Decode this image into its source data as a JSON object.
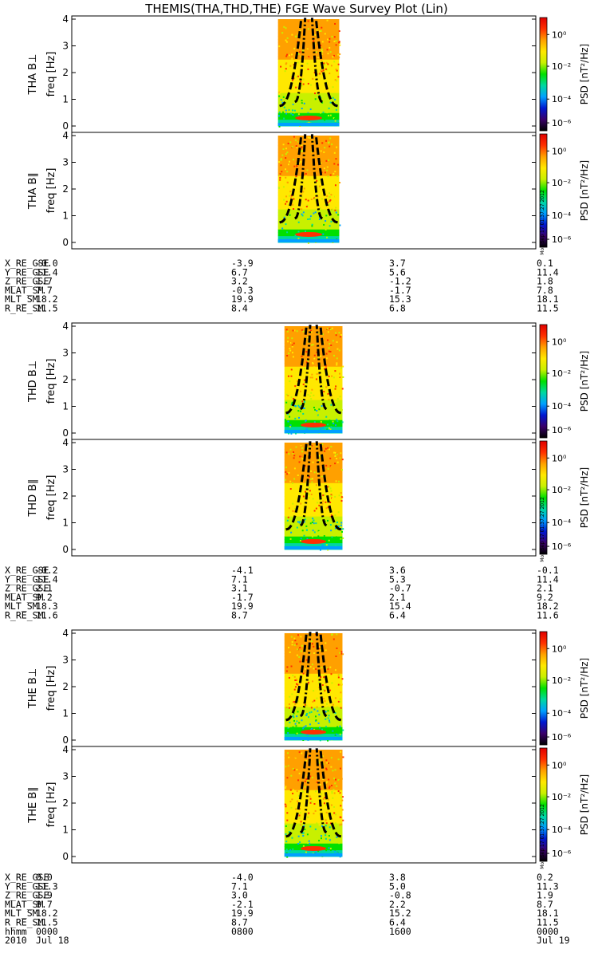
{
  "title": "THEMIS(THA,THD,THE) FGE Wave Survey Plot (Lin)",
  "freq_unit_label": "freq [Hz]",
  "y_ticks": [
    "0",
    "1",
    "2",
    "3",
    "4"
  ],
  "colorbar": {
    "title": "PSD [nT²/Hz]",
    "ticks": [
      "10⁰",
      "10⁻²",
      "10⁻⁴",
      "10⁻⁶"
    ],
    "timestamp": "Mon Sep 17 01:37:27 2012",
    "colors": [
      "#000000",
      "#3a006a",
      "#0018d0",
      "#00a0ff",
      "#00d8a0",
      "#00e000",
      "#c8f000",
      "#ffe800",
      "#ffa000",
      "#ff3000",
      "#e00000"
    ]
  },
  "probes": [
    {
      "panels": [
        "THA B⊥",
        "THA B∥"
      ],
      "ephemeris": [
        {
          "label": "X_RE_GSE",
          "values": [
            "-0.0",
            "-3.9",
            "3.7",
            "0.1"
          ]
        },
        {
          "label": "Y_RE_GSE",
          "values": [
            "11.4",
            "6.7",
            "5.6",
            "11.4"
          ]
        },
        {
          "label": "Z_RE_GSE",
          "values": [
            "1.7",
            "3.2",
            "-1.2",
            "1.8"
          ]
        },
        {
          "label": "MLAT_SM",
          "values": [
            "7.7",
            "-0.3",
            "-1.7",
            "7.8"
          ]
        },
        {
          "label": "MLT_SM",
          "values": [
            "18.2",
            "19.9",
            "15.3",
            "18.1"
          ]
        },
        {
          "label": "R_RE_SM",
          "values": [
            "11.5",
            "8.4",
            "6.8",
            "11.5"
          ]
        }
      ]
    },
    {
      "panels": [
        "THD B⊥",
        "THD B∥"
      ],
      "ephemeris": [
        {
          "label": "X_RE_GSE",
          "values": [
            "-0.2",
            "-4.1",
            "3.6",
            "-0.1"
          ]
        },
        {
          "label": "Y_RE_GSE",
          "values": [
            "11.4",
            "7.1",
            "5.3",
            "11.4"
          ]
        },
        {
          "label": "Z_RE_GSE",
          "values": [
            "2.1",
            "3.1",
            "-0.7",
            "2.1"
          ]
        },
        {
          "label": "MLAT_SM",
          "values": [
            "9.2",
            "-1.7",
            "2.1",
            "9.2"
          ]
        },
        {
          "label": "MLT_SM",
          "values": [
            "18.3",
            "19.9",
            "15.4",
            "18.2"
          ]
        },
        {
          "label": "R_RE_SM",
          "values": [
            "11.6",
            "8.7",
            "6.4",
            "11.6"
          ]
        }
      ]
    },
    {
      "panels": [
        "THE B⊥",
        "THE B∥"
      ],
      "ephemeris": [
        {
          "label": "X_RE_GSE",
          "values": [
            "0.0",
            "-4.0",
            "3.8",
            "0.2"
          ]
        },
        {
          "label": "Y_RE_GSE",
          "values": [
            "11.3",
            "7.1",
            "5.0",
            "11.3"
          ]
        },
        {
          "label": "Z_RE_GSE",
          "values": [
            "1.9",
            "3.0",
            "-0.8",
            "1.9"
          ]
        },
        {
          "label": "MLAT_SM",
          "values": [
            "8.7",
            "-2.1",
            "2.2",
            "8.7"
          ]
        },
        {
          "label": "MLT_SM",
          "values": [
            "18.2",
            "19.9",
            "15.2",
            "18.1"
          ]
        },
        {
          "label": "R_RE_SM",
          "values": [
            "11.5",
            "8.7",
            "6.4",
            "11.5"
          ]
        },
        {
          "label": "hhmm",
          "values": [
            "0000",
            "0800",
            "1600",
            "0000"
          ]
        },
        {
          "label": "2010",
          "values": [
            "Jul 18",
            "",
            "",
            "Jul 19"
          ]
        }
      ]
    }
  ],
  "chart_data": {
    "type": "heatmap",
    "title": "THEMIS(THA,THD,THE) FGE Wave Survey Plot (Lin)",
    "xlabel": "hhmm",
    "ylabel": "freq [Hz]",
    "ylim": [
      0,
      4
    ],
    "y_ticks": [
      0,
      1,
      2,
      3,
      4
    ],
    "x_ticks": [
      "0000",
      "0800",
      "1600",
      "0000"
    ],
    "x_dates": [
      "Jul 18",
      "",
      "",
      "Jul 19"
    ],
    "z_scale": "log",
    "z_ticks": [
      1,
      0.01,
      0.0001,
      1e-06
    ],
    "z_label": "PSD [nT²/Hz]",
    "series": [
      {
        "name": "THA B⊥",
        "data_interval_hhmm": [
          "1040",
          "1350"
        ]
      },
      {
        "name": "THA B∥",
        "data_interval_hhmm": [
          "1040",
          "1350"
        ]
      },
      {
        "name": "THD B⊥",
        "data_interval_hhmm": [
          "1100",
          "1400"
        ]
      },
      {
        "name": "THD B∥",
        "data_interval_hhmm": [
          "1100",
          "1400"
        ]
      },
      {
        "name": "THE B⊥",
        "data_interval_hhmm": [
          "1100",
          "1400"
        ]
      },
      {
        "name": "THE B∥",
        "data_interval_hhmm": [
          "1100",
          "1400"
        ]
      }
    ]
  }
}
